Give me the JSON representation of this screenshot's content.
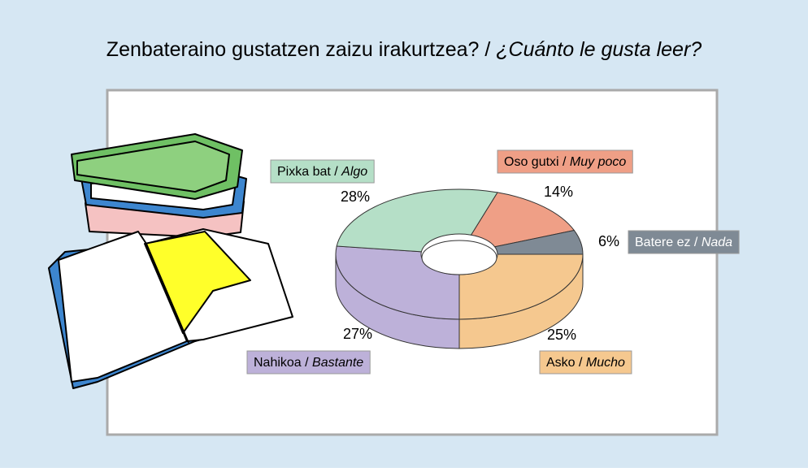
{
  "chart_data": {
    "type": "donut3d",
    "title": [
      "Zenbateraino gustatzen zaizu irakurtzea? / ",
      "¿Cuánto le gusta leer?"
    ],
    "categories": [
      [
        "Oso gutxi / ",
        "Muy poco"
      ],
      [
        "Batere ez / ",
        "Nada"
      ],
      [
        "Asko / ",
        "Mucho"
      ],
      [
        "Nahikoa / ",
        "Bastante"
      ],
      [
        "Pixka bat / ",
        "Algo"
      ]
    ],
    "values": [
      14,
      6,
      25,
      27,
      28
    ],
    "value_labels": [
      "14%",
      "6%",
      "25%",
      "27%",
      "28%"
    ],
    "colors": [
      "#ef9f86",
      "#7f8a95",
      "#f5c88f",
      "#bdb1d9",
      "#b5dfc7"
    ]
  }
}
